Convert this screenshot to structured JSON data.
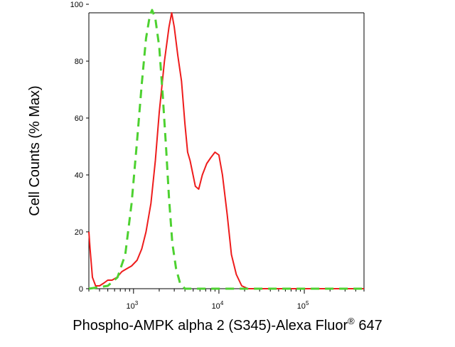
{
  "chart_data": {
    "type": "line",
    "xlabel": "Phospho-AMPK alpha 2 (S345)-Alexa Fluor",
    "xlabel_super": "®",
    "xlabel_tail": " 647",
    "ylabel": "Cell Counts (% Max)",
    "x_scale": "log",
    "xlim": [
      300,
      500000
    ],
    "ylim": [
      0,
      100
    ],
    "x_ticks": [
      {
        "value": 1000,
        "base": "10",
        "exp": "3"
      },
      {
        "value": 10000,
        "base": "10",
        "exp": "4"
      },
      {
        "value": 100000,
        "base": "10",
        "exp": "5"
      }
    ],
    "y_ticks": [
      0,
      20,
      40,
      60,
      80,
      100
    ],
    "grid": false,
    "series": [
      {
        "color": "#ee1c1c",
        "style": "solid",
        "points": [
          [
            300,
            20
          ],
          [
            310,
            14
          ],
          [
            330,
            4
          ],
          [
            360,
            1
          ],
          [
            400,
            1
          ],
          [
            450,
            2
          ],
          [
            500,
            3
          ],
          [
            560,
            3
          ],
          [
            640,
            4
          ],
          [
            730,
            6
          ],
          [
            830,
            7
          ],
          [
            950,
            8
          ],
          [
            1100,
            10
          ],
          [
            1250,
            14
          ],
          [
            1400,
            20
          ],
          [
            1600,
            30
          ],
          [
            1800,
            45
          ],
          [
            2000,
            62
          ],
          [
            2300,
            80
          ],
          [
            2600,
            92
          ],
          [
            2800,
            97
          ],
          [
            3000,
            92
          ],
          [
            3300,
            82
          ],
          [
            3650,
            73
          ],
          [
            4000,
            58
          ],
          [
            4300,
            48
          ],
          [
            4600,
            45
          ],
          [
            4900,
            41
          ],
          [
            5300,
            36
          ],
          [
            5800,
            35
          ],
          [
            6400,
            40
          ],
          [
            7200,
            44
          ],
          [
            8000,
            46
          ],
          [
            9000,
            48
          ],
          [
            10000,
            47
          ],
          [
            11000,
            40
          ],
          [
            12500,
            26
          ],
          [
            14000,
            12
          ],
          [
            16000,
            5
          ],
          [
            18500,
            1
          ],
          [
            22000,
            0
          ],
          [
            500000,
            0
          ]
        ]
      },
      {
        "color": "#4dd130",
        "style": "dashed",
        "points": [
          [
            300,
            0
          ],
          [
            500,
            1
          ],
          [
            650,
            4
          ],
          [
            800,
            12
          ],
          [
            950,
            30
          ],
          [
            1100,
            52
          ],
          [
            1250,
            72
          ],
          [
            1400,
            88
          ],
          [
            1550,
            96
          ],
          [
            1650,
            98
          ],
          [
            1800,
            95
          ],
          [
            2000,
            85
          ],
          [
            2200,
            68
          ],
          [
            2400,
            50
          ],
          [
            2600,
            32
          ],
          [
            2850,
            16
          ],
          [
            3150,
            7
          ],
          [
            3500,
            2
          ],
          [
            4000,
            0
          ],
          [
            500000,
            0
          ]
        ]
      }
    ]
  }
}
